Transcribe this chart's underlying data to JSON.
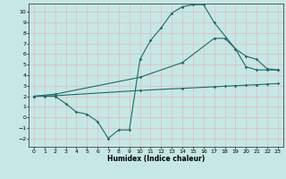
{
  "title": "",
  "xlabel": "Humidex (Indice chaleur)",
  "ylabel": "",
  "bg_color": "#c5e8e5",
  "grid_color": "#e8b8b8",
  "line_color": "#1a6b6b",
  "xlim": [
    -0.5,
    23.5
  ],
  "ylim": [
    -2.8,
    10.8
  ],
  "xticks": [
    0,
    1,
    2,
    3,
    4,
    5,
    6,
    7,
    8,
    9,
    10,
    11,
    12,
    13,
    14,
    15,
    16,
    17,
    18,
    19,
    20,
    21,
    22,
    23
  ],
  "yticks": [
    -2,
    -1,
    0,
    1,
    2,
    3,
    4,
    5,
    6,
    7,
    8,
    9,
    10
  ],
  "line1_x": [
    0,
    1,
    2,
    3,
    4,
    5,
    6,
    7,
    8,
    9,
    10,
    11,
    12,
    13,
    14,
    15,
    16,
    17,
    19,
    20,
    21,
    22,
    23
  ],
  "line1_y": [
    2.0,
    2.0,
    2.0,
    1.3,
    0.5,
    0.3,
    -0.4,
    -2.0,
    -1.2,
    -1.2,
    5.5,
    7.3,
    8.5,
    9.9,
    10.5,
    10.7,
    10.7,
    9.0,
    6.5,
    4.8,
    4.5,
    4.5,
    4.5
  ],
  "line2_x": [
    0,
    2,
    10,
    14,
    17,
    18,
    19,
    20,
    21,
    22,
    23
  ],
  "line2_y": [
    2.0,
    2.2,
    3.8,
    5.2,
    7.5,
    7.5,
    6.5,
    5.8,
    5.5,
    4.6,
    4.5
  ],
  "line3_x": [
    0,
    2,
    10,
    14,
    17,
    18,
    19,
    20,
    21,
    22,
    23
  ],
  "line3_y": [
    2.0,
    2.05,
    2.55,
    2.75,
    2.9,
    2.95,
    3.0,
    3.05,
    3.1,
    3.15,
    3.2
  ]
}
